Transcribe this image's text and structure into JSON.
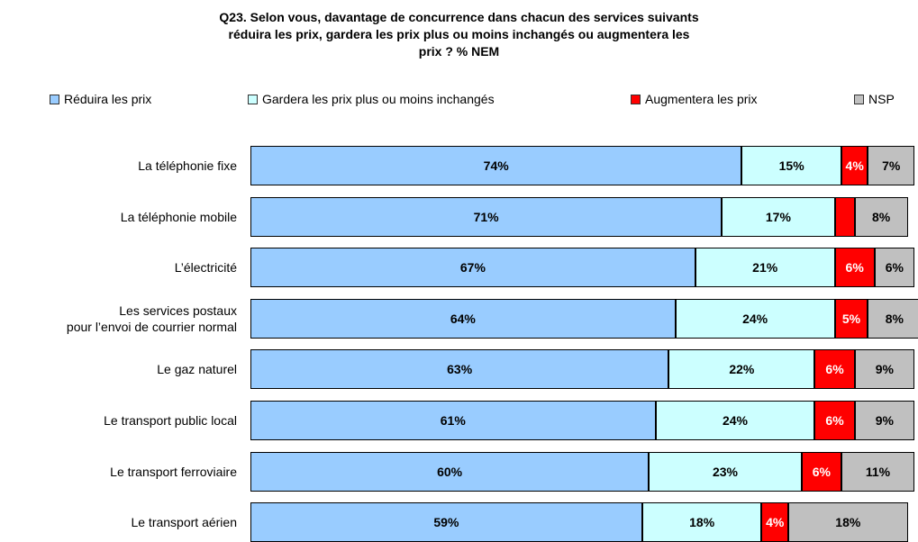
{
  "chart_data": {
    "type": "stacked-bar-horizontal",
    "title": "Q23. Selon vous, davantage de concurrence dans chacun des services suivants\nréduira les prix, gardera les prix plus ou moins inchangés ou augmentera les\nprix ? % NEM",
    "categories": [
      "La téléphonie fixe",
      "La téléphonie mobile",
      "L’électricité",
      "Les services postaux\npour l’envoi de courrier normal",
      "Le gaz naturel",
      "Le transport public local",
      "Le transport ferroviaire",
      "Le transport aérien"
    ],
    "series": [
      {
        "name": "Réduira les prix",
        "color": "#99ccff",
        "values": [
          74,
          71,
          67,
          64,
          63,
          61,
          60,
          59
        ],
        "value_labels": [
          "74%",
          "71%",
          "67%",
          "64%",
          "63%",
          "61%",
          "60%",
          "59%"
        ]
      },
      {
        "name": "Gardera les prix plus ou moins inchangés",
        "color": "#ccffff",
        "values": [
          15,
          17,
          21,
          24,
          22,
          24,
          23,
          18
        ],
        "value_labels": [
          "15%",
          "17%",
          "21%",
          "24%",
          "22%",
          "24%",
          "23%",
          "18%"
        ]
      },
      {
        "name": "Augmentera les prix",
        "color": "#ff0000",
        "values": [
          4,
          3,
          6,
          5,
          6,
          6,
          6,
          4
        ],
        "value_labels": [
          "4%",
          null,
          "6%",
          "5%",
          "6%",
          "6%",
          "6%",
          "4%"
        ]
      },
      {
        "name": "NSP",
        "color": "#c0c0c0",
        "values": [
          7,
          8,
          6,
          8,
          9,
          9,
          11,
          18
        ],
        "value_labels": [
          "7%",
          "8%",
          "6%",
          "8%",
          "9%",
          "9%",
          "11%",
          "18%"
        ]
      }
    ]
  }
}
